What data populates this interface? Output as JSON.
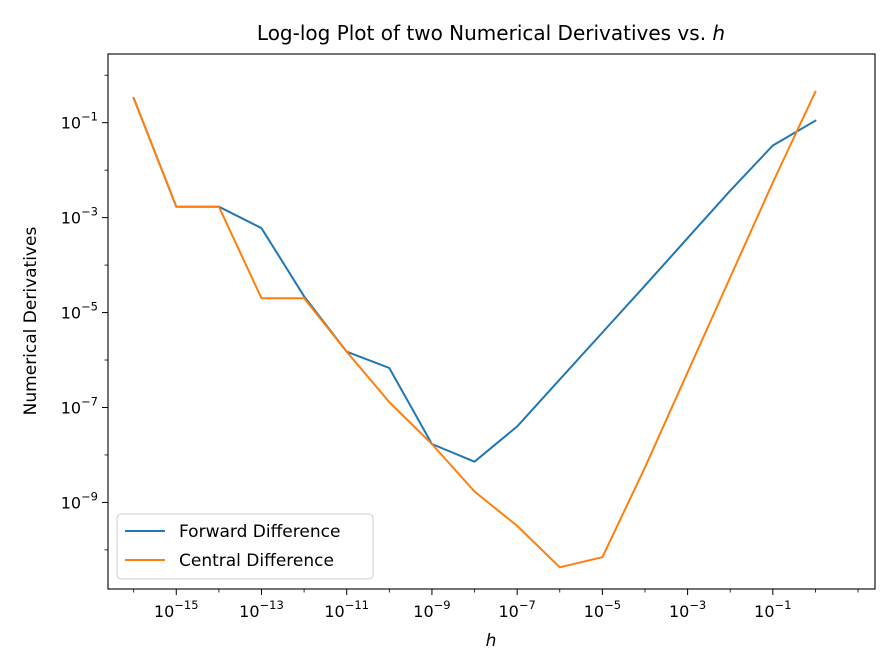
{
  "chart_data": {
    "type": "line",
    "title_text": "Log-log Plot of two Numerical Derivatives vs. ",
    "title_var": "h",
    "xlabel": "h",
    "ylabel": "Numerical Derivatives",
    "xscale": "log",
    "yscale": "log",
    "xlim": [
      2.5e-17,
      25
    ],
    "ylim": [
      1.5e-11,
      2.8
    ],
    "grid": false,
    "legend_position": "lower-left",
    "x": [
      1e-16,
      1e-15,
      1e-14,
      1e-13,
      1e-12,
      1e-11,
      1e-10,
      1e-09,
      1e-08,
      1e-07,
      1e-06,
      1e-05,
      0.0001,
      0.001,
      0.01,
      0.1,
      1
    ],
    "series": [
      {
        "name": "Forward Difference",
        "color": "#1f77b4",
        "values": [
          0.33,
          0.0017,
          0.0017,
          0.0006,
          2.2e-05,
          1.5e-06,
          6.8e-07,
          1.7e-08,
          7.2e-09,
          4e-08,
          3.9e-07,
          3.8e-06,
          3.7e-05,
          0.00037,
          0.0037,
          0.033,
          0.11
        ]
      },
      {
        "name": "Central Difference",
        "color": "#ff7f0e",
        "values": [
          0.33,
          0.0017,
          0.0017,
          2e-05,
          2e-05,
          1.5e-06,
          1.3e-07,
          1.7e-08,
          1.7e-09,
          3.2e-10,
          4.3e-11,
          7e-11,
          5.5e-09,
          5.5e-07,
          5.5e-05,
          0.0055,
          0.45
        ]
      }
    ],
    "x_ticks": [
      {
        "base": "10",
        "exp": "−15",
        "value": 1e-15
      },
      {
        "base": "10",
        "exp": "−13",
        "value": 1e-13
      },
      {
        "base": "10",
        "exp": "−11",
        "value": 1e-11
      },
      {
        "base": "10",
        "exp": "−9",
        "value": 1e-09
      },
      {
        "base": "10",
        "exp": "−7",
        "value": 1e-07
      },
      {
        "base": "10",
        "exp": "−5",
        "value": 1e-05
      },
      {
        "base": "10",
        "exp": "−3",
        "value": 0.001
      },
      {
        "base": "10",
        "exp": "−1",
        "value": 0.1
      }
    ],
    "y_ticks": [
      {
        "base": "10",
        "exp": "−1",
        "value": 0.1
      },
      {
        "base": "10",
        "exp": "−3",
        "value": 0.001
      },
      {
        "base": "10",
        "exp": "−5",
        "value": 1e-05
      },
      {
        "base": "10",
        "exp": "−7",
        "value": 1e-07
      },
      {
        "base": "10",
        "exp": "−9",
        "value": 1e-09
      }
    ]
  }
}
